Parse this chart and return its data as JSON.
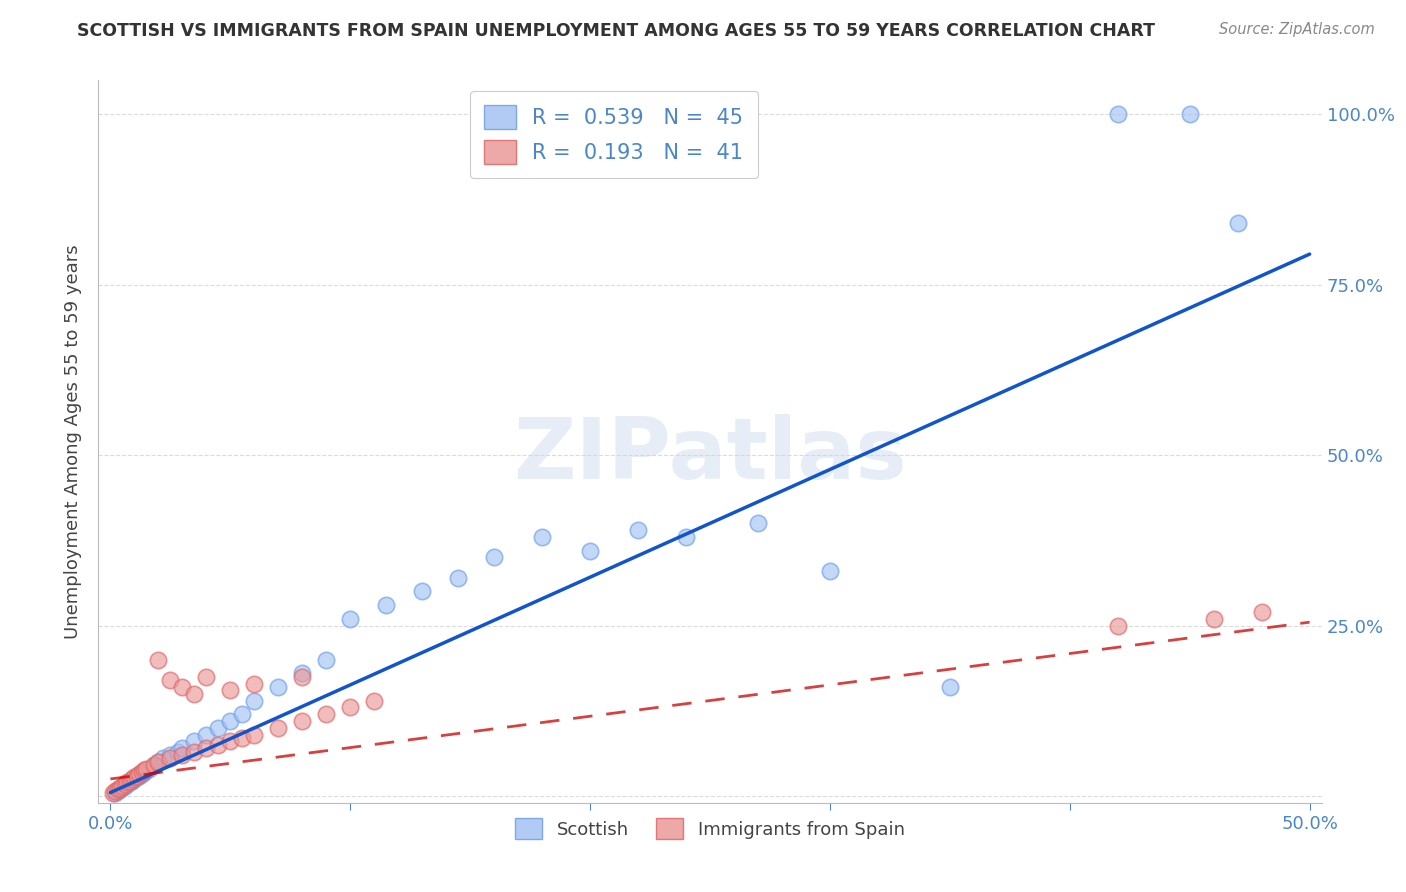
{
  "title": "SCOTTISH VS IMMIGRANTS FROM SPAIN UNEMPLOYMENT AMONG AGES 55 TO 59 YEARS CORRELATION CHART",
  "source": "Source: ZipAtlas.com",
  "ylabel": "Unemployment Among Ages 55 to 59 years",
  "xlim": [
    -0.005,
    0.505
  ],
  "ylim": [
    -0.01,
    1.05
  ],
  "xtick_positions": [
    0.0,
    0.1,
    0.2,
    0.3,
    0.4,
    0.5
  ],
  "xtick_labels": [
    "0.0%",
    "",
    "",
    "",
    "",
    "50.0%"
  ],
  "ytick_positions": [
    0.0,
    0.25,
    0.5,
    0.75,
    1.0
  ],
  "ytick_labels_right": [
    "",
    "25.0%",
    "50.0%",
    "75.0%",
    "100.0%"
  ],
  "blue_color": "#a4c2f4",
  "blue_edge_color": "#6d9eeb",
  "pink_color": "#ea9999",
  "pink_edge_color": "#e06666",
  "blue_line_color": "#1155cc",
  "pink_line_color": "#cc0000",
  "R_blue": 0.539,
  "N_blue": 45,
  "R_pink": 0.193,
  "N_pink": 41,
  "legend_label_blue": "Scottish",
  "legend_label_pink": "Immigrants from Spain",
  "watermark": "ZIPatlas",
  "title_color": "#333333",
  "source_color": "#888888",
  "tick_color": "#4a86c8",
  "label_color": "#444444",
  "grid_color": "#cccccc",
  "blue_x": [
    0.002,
    0.003,
    0.004,
    0.005,
    0.006,
    0.007,
    0.008,
    0.009,
    0.01,
    0.011,
    0.012,
    0.013,
    0.014,
    0.015,
    0.016,
    0.018,
    0.02,
    0.022,
    0.025,
    0.028,
    0.03,
    0.035,
    0.04,
    0.045,
    0.05,
    0.055,
    0.06,
    0.07,
    0.08,
    0.09,
    0.1,
    0.115,
    0.13,
    0.145,
    0.16,
    0.18,
    0.2,
    0.22,
    0.24,
    0.27,
    0.3,
    0.35,
    0.42,
    0.45,
    0.47
  ],
  "blue_y": [
    0.005,
    0.008,
    0.01,
    0.012,
    0.015,
    0.018,
    0.02,
    0.022,
    0.025,
    0.028,
    0.03,
    0.032,
    0.035,
    0.038,
    0.04,
    0.045,
    0.05,
    0.055,
    0.06,
    0.065,
    0.07,
    0.08,
    0.09,
    0.1,
    0.11,
    0.12,
    0.14,
    0.16,
    0.18,
    0.2,
    0.26,
    0.28,
    0.3,
    0.32,
    0.35,
    0.38,
    0.36,
    0.39,
    0.38,
    0.4,
    0.33,
    0.16,
    1.0,
    1.0,
    0.84
  ],
  "pink_x": [
    0.001,
    0.002,
    0.003,
    0.004,
    0.005,
    0.006,
    0.007,
    0.008,
    0.009,
    0.01,
    0.011,
    0.012,
    0.013,
    0.014,
    0.015,
    0.018,
    0.02,
    0.025,
    0.03,
    0.035,
    0.04,
    0.045,
    0.05,
    0.055,
    0.06,
    0.07,
    0.08,
    0.09,
    0.1,
    0.11,
    0.02,
    0.025,
    0.03,
    0.035,
    0.04,
    0.05,
    0.06,
    0.08,
    0.42,
    0.46,
    0.48
  ],
  "pink_y": [
    0.005,
    0.008,
    0.01,
    0.012,
    0.015,
    0.018,
    0.02,
    0.022,
    0.025,
    0.028,
    0.03,
    0.032,
    0.035,
    0.038,
    0.04,
    0.045,
    0.05,
    0.055,
    0.06,
    0.065,
    0.07,
    0.075,
    0.08,
    0.085,
    0.09,
    0.1,
    0.11,
    0.12,
    0.13,
    0.14,
    0.2,
    0.17,
    0.16,
    0.15,
    0.175,
    0.155,
    0.165,
    0.175,
    0.25,
    0.26,
    0.27
  ],
  "blue_slope": 1.58,
  "blue_intercept": 0.005,
  "pink_slope": 0.46,
  "pink_intercept": 0.025
}
